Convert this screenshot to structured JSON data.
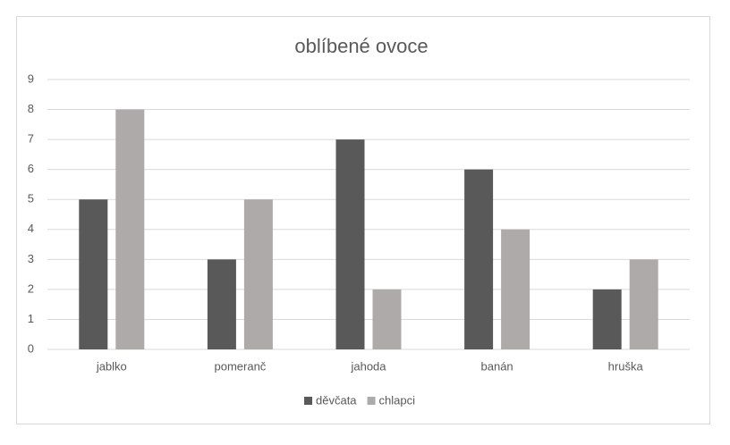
{
  "chart_data": {
    "type": "bar",
    "title": "oblíbené ovoce",
    "categories": [
      "jablko",
      "pomeranč",
      "jahoda",
      "banán",
      "hruška"
    ],
    "series": [
      {
        "name": "děvčata",
        "color": "#595959",
        "values": [
          5,
          3,
          7,
          6,
          2
        ]
      },
      {
        "name": "chlapci",
        "color": "#aeaaaa",
        "values": [
          8,
          5,
          2,
          4,
          3
        ]
      }
    ],
    "ylim": [
      0,
      9
    ],
    "yticks": [
      0,
      1,
      2,
      3,
      4,
      5,
      6,
      7,
      8,
      9
    ],
    "grid": true,
    "legend": "bottom"
  }
}
